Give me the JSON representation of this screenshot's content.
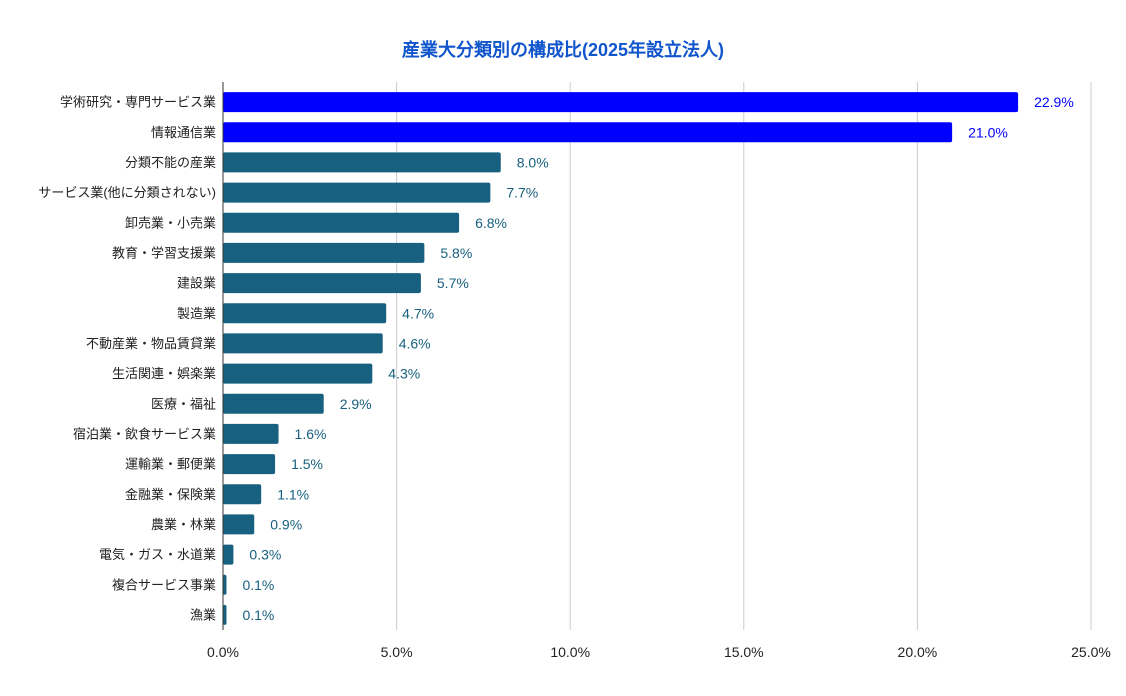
{
  "chart_data": {
    "type": "bar",
    "orientation": "horizontal",
    "title": "産業大分類別の構成比(2025年設立法人)",
    "categories": [
      "学術研究・専門サービス業",
      "情報通信業",
      "分類不能の産業",
      "サービス業(他に分類されない)",
      "卸売業・小売業",
      "教育・学習支援業",
      "建設業",
      "製造業",
      "不動産業・物品賃貸業",
      "生活関連・娯楽業",
      "医療・福祉",
      "宿泊業・飲食サービス業",
      "運輸業・郵便業",
      "金融業・保険業",
      "農業・林業",
      "電気・ガス・水道業",
      "複合サービス事業",
      "漁業"
    ],
    "values": [
      22.9,
      21.0,
      8.0,
      7.7,
      6.8,
      5.8,
      5.7,
      4.7,
      4.6,
      4.3,
      2.9,
      1.6,
      1.5,
      1.1,
      0.9,
      0.3,
      0.1,
      0.1
    ],
    "data_labels": [
      "22.9%",
      "21.0%",
      "8.0%",
      "7.7%",
      "6.8%",
      "5.8%",
      "5.7%",
      "4.7%",
      "4.6%",
      "4.3%",
      "2.9%",
      "1.6%",
      "1.5%",
      "1.1%",
      "0.9%",
      "0.3%",
      "0.1%",
      "0.1%"
    ],
    "highlighted": [
      0,
      1
    ],
    "xlim": [
      0,
      25
    ],
    "xticks": [
      "0.0%",
      "5.0%",
      "10.0%",
      "15.0%",
      "20.0%",
      "25.0%"
    ],
    "xlabel": "",
    "ylabel": "",
    "grid": "vertical",
    "colors": {
      "bar": "#17607f",
      "highlight": "#0000ff",
      "title": "#1155cc",
      "grid": "#cccccc"
    }
  }
}
